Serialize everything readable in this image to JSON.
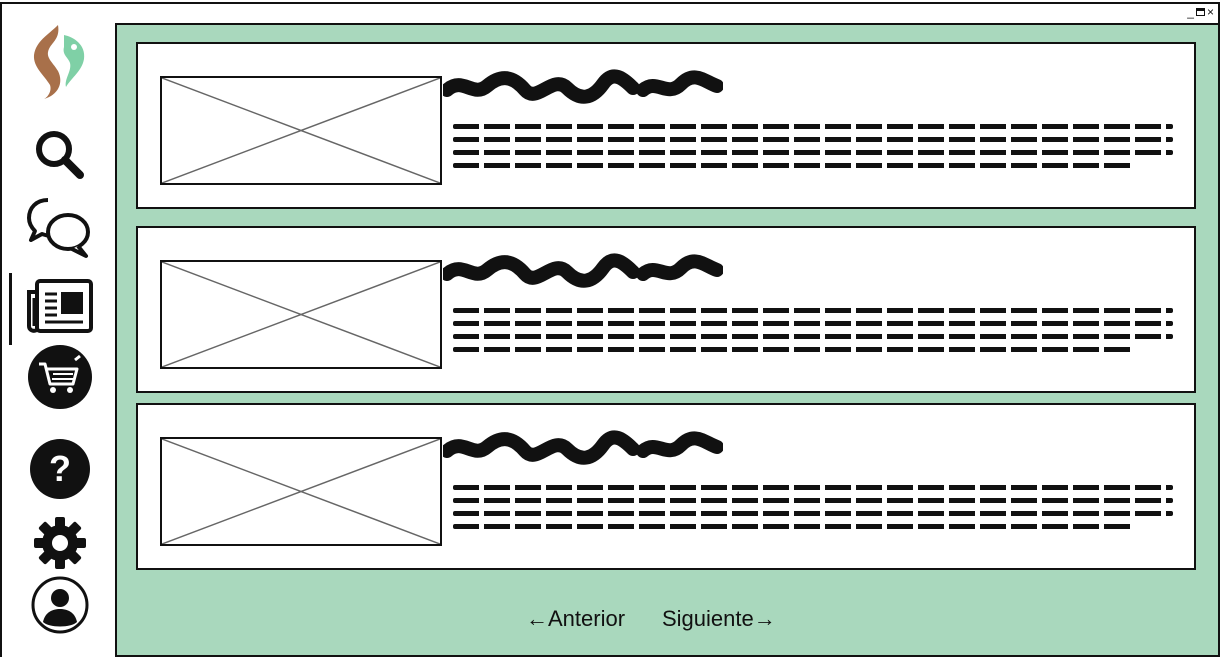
{
  "window": {
    "controls": {
      "minimize": "_",
      "close": "×"
    }
  },
  "sidebar": {
    "items": [
      {
        "name": "logo",
        "icon": "cat-bird-logo"
      },
      {
        "name": "search",
        "icon": "search-icon"
      },
      {
        "name": "chat",
        "icon": "chat-icon"
      },
      {
        "name": "news",
        "icon": "newspaper-icon",
        "active": true
      },
      {
        "name": "shop",
        "icon": "cart-icon"
      },
      {
        "name": "help",
        "icon": "help-icon",
        "glyph": "?"
      },
      {
        "name": "settings",
        "icon": "gear-icon"
      },
      {
        "name": "profile",
        "icon": "user-icon"
      }
    ]
  },
  "articles": [
    {
      "image": "image-placeholder",
      "title": "scribble-title",
      "body": "scribble-text"
    },
    {
      "image": "image-placeholder",
      "title": "scribble-title",
      "body": "scribble-text"
    },
    {
      "image": "image-placeholder",
      "title": "scribble-title",
      "body": "scribble-text"
    }
  ],
  "pagination": {
    "prev_label": "←Anterior",
    "next_label": "Siguiente→"
  },
  "colors": {
    "background": "#a9d8bd",
    "logo_brown": "#a8704a",
    "logo_green": "#7fd0a6"
  }
}
